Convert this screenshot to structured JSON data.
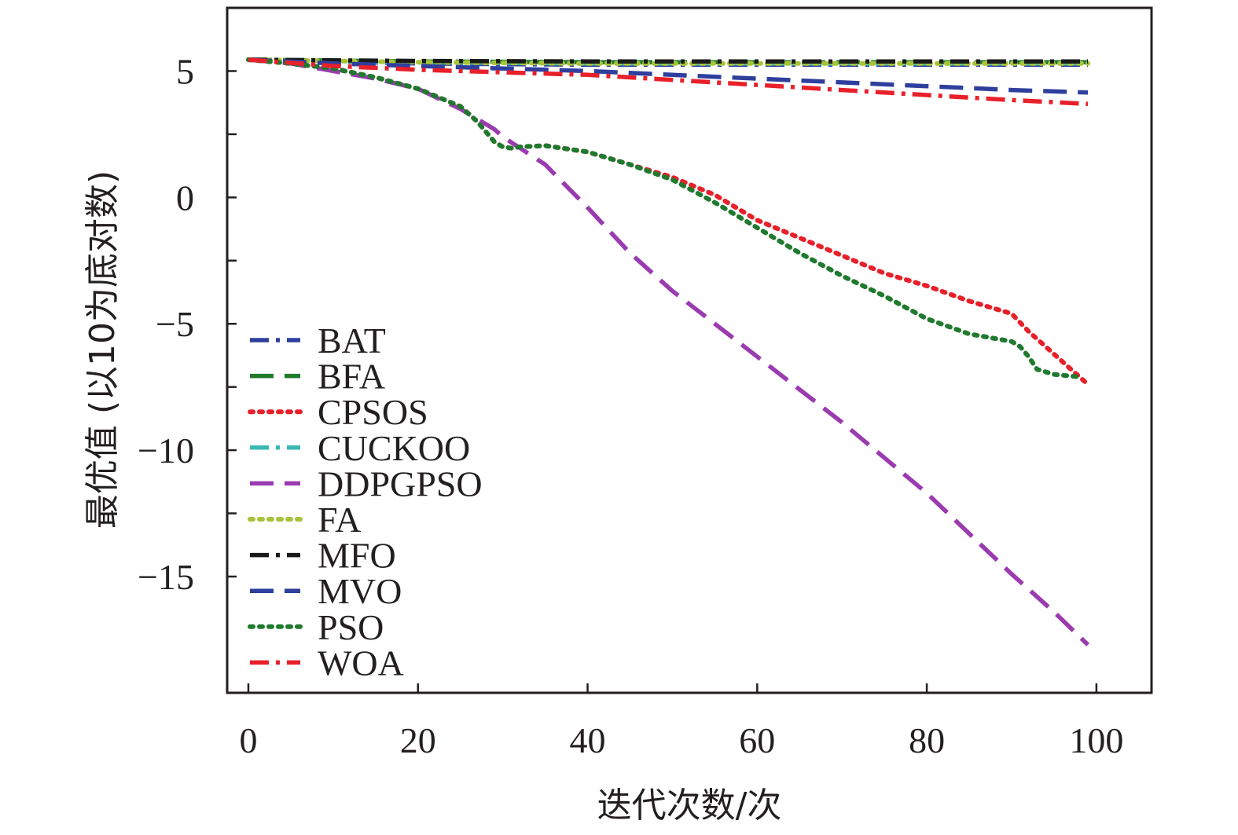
{
  "chart_data": {
    "type": "line",
    "xlabel": "迭代次数/次",
    "ylabel": "最优值 (以10为底对数)",
    "xlim": [
      -2.5,
      106.5
    ],
    "ylim": [
      -19.6,
      7.5
    ],
    "x_ticks": [
      0,
      20,
      40,
      60,
      80,
      100
    ],
    "x_tick_labels": [
      "0",
      "20",
      "40",
      "60",
      "80",
      "100"
    ],
    "y_ticks": [
      5,
      2.5,
      0,
      -2.5,
      -5,
      -7.5,
      -10,
      -12.5,
      -15
    ],
    "y_tick_labels": [
      "5",
      "",
      "0",
      "",
      "−5",
      "",
      "−10",
      "",
      "−15"
    ],
    "grid": false,
    "legend_position": "lower-left",
    "series": [
      {
        "name": "BAT",
        "color": "#2e3f9e",
        "dash": "dashdot",
        "x": [
          0,
          20,
          40,
          60,
          80,
          99
        ],
        "y": [
          5.45,
          5.3,
          5.25,
          5.25,
          5.25,
          5.25
        ]
      },
      {
        "name": "BFA",
        "color": "#1f7a2e",
        "dash": "dashed",
        "x": [
          0,
          20,
          40,
          60,
          80,
          99
        ],
        "y": [
          5.45,
          5.38,
          5.35,
          5.35,
          5.35,
          5.35
        ]
      },
      {
        "name": "CPSOS",
        "color": "#e8202a",
        "dash": "dotted",
        "x": [
          0,
          5,
          10,
          15,
          20,
          25,
          27,
          28,
          29,
          30,
          31,
          32,
          35,
          40,
          45,
          50,
          55,
          60,
          65,
          70,
          75,
          80,
          85,
          90,
          92,
          95,
          99
        ],
        "y": [
          5.45,
          5.3,
          5.1,
          4.75,
          4.3,
          3.6,
          3.0,
          2.6,
          2.2,
          2.0,
          1.95,
          2.0,
          2.05,
          1.8,
          1.3,
          0.8,
          0.1,
          -0.9,
          -1.6,
          -2.3,
          -3.0,
          -3.5,
          -4.1,
          -4.6,
          -5.3,
          -6.2,
          -7.4
        ]
      },
      {
        "name": "CUCKOO",
        "color": "#3cb8b2",
        "dash": "dashdot",
        "x": [
          0,
          20,
          40,
          60,
          80,
          99
        ],
        "y": [
          5.45,
          5.35,
          5.3,
          5.3,
          5.3,
          5.3
        ]
      },
      {
        "name": "DDPGPSO",
        "color": "#9a3bb0",
        "dash": "dashed",
        "x": [
          0,
          5,
          10,
          15,
          20,
          25,
          27,
          28,
          29,
          30,
          35,
          40,
          45,
          50,
          55,
          60,
          65,
          70,
          75,
          80,
          85,
          90,
          95,
          99
        ],
        "y": [
          5.45,
          5.3,
          5.0,
          4.7,
          4.3,
          3.5,
          3.1,
          2.9,
          2.7,
          2.4,
          1.3,
          -0.4,
          -2.2,
          -3.7,
          -5.0,
          -6.3,
          -7.6,
          -8.9,
          -10.3,
          -11.7,
          -13.3,
          -14.9,
          -16.4,
          -17.7
        ]
      },
      {
        "name": "FA",
        "color": "#a8c33a",
        "dash": "dotted",
        "x": [
          0,
          20,
          40,
          60,
          80,
          99
        ],
        "y": [
          5.45,
          5.35,
          5.3,
          5.3,
          5.3,
          5.3
        ]
      },
      {
        "name": "MFO",
        "color": "#1a1a1a",
        "dash": "dashdot",
        "x": [
          0,
          20,
          40,
          60,
          80,
          99
        ],
        "y": [
          5.45,
          5.4,
          5.38,
          5.38,
          5.38,
          5.38
        ]
      },
      {
        "name": "MVO",
        "color": "#2e3f9e",
        "dash": "dashed",
        "x": [
          0,
          10,
          20,
          30,
          40,
          50,
          60,
          70,
          80,
          90,
          99
        ],
        "y": [
          5.45,
          5.3,
          5.2,
          5.1,
          5.0,
          4.85,
          4.7,
          4.55,
          4.4,
          4.25,
          4.15
        ]
      },
      {
        "name": "PSO",
        "color": "#1f7a2e",
        "dash": "dotted",
        "x": [
          0,
          5,
          10,
          15,
          20,
          25,
          27,
          28,
          29,
          30,
          31,
          32,
          35,
          40,
          45,
          50,
          55,
          60,
          65,
          70,
          75,
          80,
          85,
          90,
          91,
          92,
          93,
          95,
          98
        ],
        "y": [
          5.45,
          5.3,
          5.1,
          4.75,
          4.3,
          3.6,
          3.0,
          2.6,
          2.2,
          2.0,
          1.95,
          2.0,
          2.05,
          1.8,
          1.3,
          0.7,
          -0.2,
          -1.2,
          -2.2,
          -3.1,
          -3.9,
          -4.8,
          -5.4,
          -5.7,
          -5.9,
          -6.3,
          -6.8,
          -7.0,
          -7.1
        ]
      },
      {
        "name": "WOA",
        "color": "#e8202a",
        "dash": "dashdot",
        "x": [
          0,
          10,
          20,
          30,
          40,
          50,
          60,
          70,
          80,
          90,
          99
        ],
        "y": [
          5.45,
          5.2,
          5.05,
          4.95,
          4.85,
          4.65,
          4.45,
          4.25,
          4.05,
          3.85,
          3.7
        ]
      }
    ]
  }
}
